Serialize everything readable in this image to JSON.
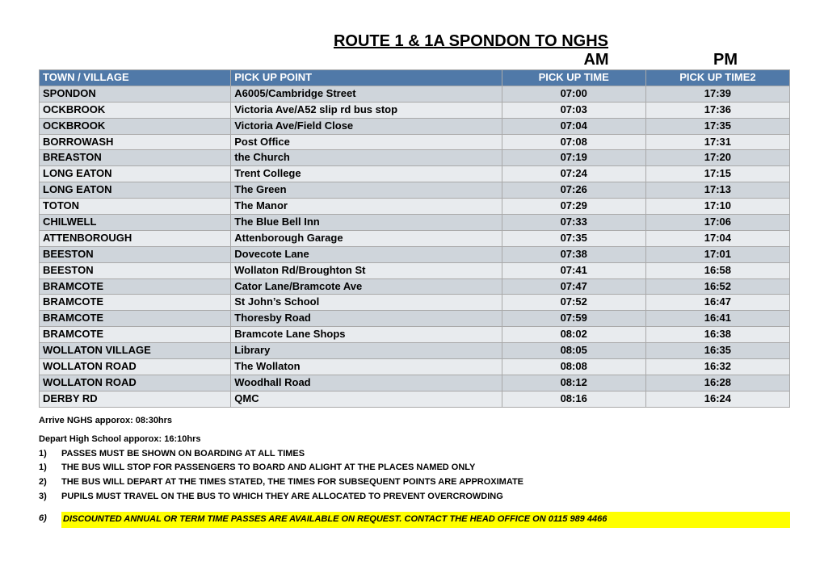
{
  "title": "ROUTE 1 & 1A SPONDON TO NGHS",
  "am_label": "AM",
  "pm_label": "PM",
  "columns": {
    "town": "TOWN / VILLAGE",
    "point": "PICK UP POINT",
    "t1": "PICK UP TIME",
    "t2": "PICK UP TIME2"
  },
  "colors": {
    "header_bg": "#5079a8",
    "header_fg": "#ffffff",
    "row_even": "#cfd5db",
    "row_odd": "#e8ebee",
    "highlight": "#ffff00",
    "border": "#a9a9a9"
  },
  "rows": [
    {
      "town": "SPONDON",
      "point": "A6005/Cambridge Street",
      "t1": "07:00",
      "t2": "17:39"
    },
    {
      "town": "OCKBROOK",
      "point": "Victoria Ave/A52 slip rd bus stop",
      "t1": "07:03",
      "t2": "17:36"
    },
    {
      "town": "OCKBROOK",
      "point": "Victoria Ave/Field Close",
      "t1": "07:04",
      "t2": "17:35"
    },
    {
      "town": "BORROWASH",
      "point": "Post Office",
      "t1": "07:08",
      "t2": "17:31"
    },
    {
      "town": "BREASTON",
      "point": "the Church",
      "t1": "07:19",
      "t2": "17:20"
    },
    {
      "town": "LONG EATON",
      "point": "Trent College",
      "t1": "07:24",
      "t2": "17:15"
    },
    {
      "town": "LONG EATON",
      "point": "The Green",
      "t1": "07:26",
      "t2": "17:13"
    },
    {
      "town": "TOTON",
      "point": "The Manor",
      "t1": "07:29",
      "t2": "17:10"
    },
    {
      "town": "CHILWELL",
      "point": "The Blue Bell Inn",
      "t1": "07:33",
      "t2": "17:06"
    },
    {
      "town": "ATTENBOROUGH",
      "point": "Attenborough Garage",
      "t1": "07:35",
      "t2": "17:04"
    },
    {
      "town": "BEESTON",
      "point": "Dovecote Lane",
      "t1": "07:38",
      "t2": "17:01"
    },
    {
      "town": "BEESTON",
      "point": "Wollaton Rd/Broughton St",
      "t1": "07:41",
      "t2": "16:58"
    },
    {
      "town": "BRAMCOTE",
      "point": "Cator Lane/Bramcote Ave",
      "t1": "07:47",
      "t2": "16:52"
    },
    {
      "town": "BRAMCOTE",
      "point": "St John’s School",
      "t1": "07:52",
      "t2": "16:47"
    },
    {
      "town": "BRAMCOTE",
      "point": "Thoresby Road",
      "t1": "07:59",
      "t2": "16:41"
    },
    {
      "town": "BRAMCOTE",
      "point": "Bramcote Lane Shops",
      "t1": "08:02",
      "t2": "16:38"
    },
    {
      "town": "WOLLATON VILLAGE",
      "point": "Library",
      "t1": "08:05",
      "t2": "16:35"
    },
    {
      "town": "WOLLATON ROAD",
      "point": "The Wollaton",
      "t1": "08:08",
      "t2": "16:32"
    },
    {
      "town": "WOLLATON ROAD",
      "point": "Woodhall Road",
      "t1": "08:12",
      "t2": "16:28"
    },
    {
      "town": "DERBY RD",
      "point": "QMC",
      "t1": "08:16",
      "t2": "16:24"
    }
  ],
  "arrive_note": "Arrive NGHS apporox: 08:30hrs",
  "depart_note": "Depart High School apporox: 16:10hrs",
  "rules": [
    {
      "n": "1)",
      "text": "PASSES MUST BE SHOWN ON BOARDING AT ALL TIMES"
    },
    {
      "n": "1)",
      "text": "THE BUS WILL STOP FOR PASSENGERS TO BOARD AND ALIGHT AT THE PLACES NAMED ONLY"
    },
    {
      "n": "2)",
      "text": "THE BUS WILL DEPART AT THE TIMES STATED, THE TIMES FOR SUBSEQUENT POINTS ARE APPROXIMATE"
    },
    {
      "n": "3)",
      "text": "PUPILS MUST TRAVEL ON THE BUS TO WHICH THEY ARE ALLOCATED TO PREVENT OVERCROWDING"
    }
  ],
  "highlight": {
    "n": "6)",
    "text": "DISCOUNTED ANNUAL OR TERM TIME PASSES ARE AVAILABLE ON REQUEST. CONTACT THE HEAD OFFICE ON 0115 989 4466"
  }
}
